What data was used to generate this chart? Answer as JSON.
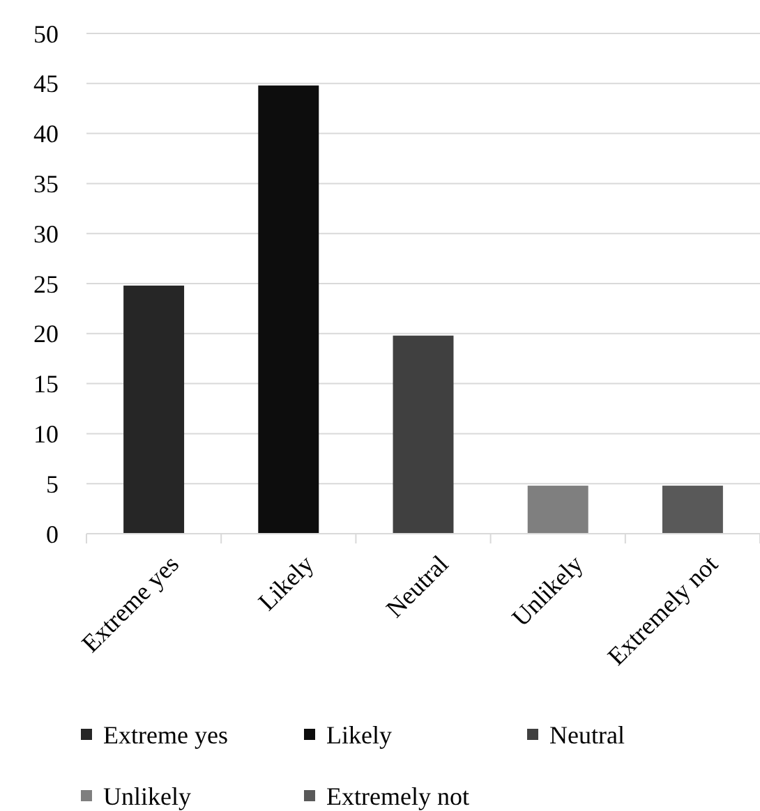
{
  "chart_data": {
    "type": "bar",
    "stacked": true,
    "categories": [
      "Extreme yes",
      "Likely",
      "Neutral",
      "Unlikely",
      "Extremely not"
    ],
    "series": [
      {
        "name": "Extreme yes",
        "color": "#262626",
        "values": [
          24.8,
          null,
          null,
          null,
          null
        ]
      },
      {
        "name": "Likely",
        "color": "#0d0d0d",
        "values": [
          null,
          44.8,
          null,
          null,
          null
        ]
      },
      {
        "name": "Neutral",
        "color": "#404040",
        "values": [
          null,
          null,
          19.8,
          null,
          null
        ]
      },
      {
        "name": "Unlikely",
        "color": "#7f7f7f",
        "values": [
          null,
          null,
          null,
          4.8,
          null
        ]
      },
      {
        "name": "Extremely not",
        "color": "#595959",
        "values": [
          null,
          null,
          null,
          null,
          4.8
        ]
      }
    ],
    "ylim": [
      0,
      50
    ],
    "yticks": [
      0,
      5,
      10,
      15,
      20,
      25,
      30,
      35,
      40,
      45,
      50
    ],
    "grid": "y",
    "legend": "bottom"
  }
}
